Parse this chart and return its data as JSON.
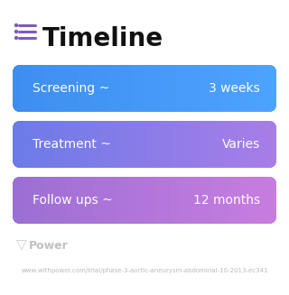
{
  "title": "Timeline",
  "title_fontsize": 20,
  "title_color": "#111111",
  "title_icon_color": "#7c5cbf",
  "background_color": "#ffffff",
  "rows": [
    {
      "label": "Screening ~",
      "value": "3 weeks",
      "color_left": "#3d8ef0",
      "color_right": "#4da3ff"
    },
    {
      "label": "Treatment ~",
      "value": "Varies",
      "color_left": "#6b7be8",
      "color_right": "#a97de8"
    },
    {
      "label": "Follow ups ~",
      "value": "12 months",
      "color_left": "#9b6fd4",
      "color_right": "#c87de0"
    }
  ],
  "row_text_color": "#ffffff",
  "row_label_fontsize": 10,
  "row_value_fontsize": 10,
  "footer_text": "Power",
  "footer_url": "www.withpower.com/trial/phase-3-aortic-aneurysm-abdominal-10-2013-ec341",
  "footer_color": "#bbbbbb",
  "footer_fontsize": 5.0
}
